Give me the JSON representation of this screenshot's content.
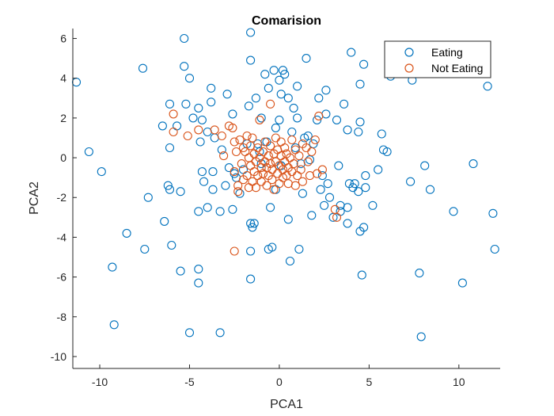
{
  "chart_data": {
    "type": "scatter",
    "title": "Comarision",
    "xlabel": "PCA1",
    "ylabel": "PCA2",
    "xlim": [
      -11.5,
      12.3
    ],
    "ylim": [
      -10.6,
      6.5
    ],
    "xticks": [
      -10,
      -5,
      0,
      5,
      10
    ],
    "yticks": [
      -10,
      -8,
      -6,
      -4,
      -2,
      0,
      2,
      4,
      6
    ],
    "grid": false,
    "legend_position": "top-right",
    "series": [
      {
        "name": "Eating",
        "color": "#0072BD",
        "marker": "circle-open",
        "points": [
          [
            -11.3,
            3.8
          ],
          [
            -10.6,
            0.3
          ],
          [
            -9.9,
            -0.7
          ],
          [
            -9.3,
            -5.5
          ],
          [
            -9.2,
            -8.4
          ],
          [
            -8.5,
            -3.8
          ],
          [
            -7.6,
            4.5
          ],
          [
            -7.3,
            -2.0
          ],
          [
            -7.5,
            -4.6
          ],
          [
            -6.5,
            1.6
          ],
          [
            -6.4,
            -3.2
          ],
          [
            -6.2,
            -1.4
          ],
          [
            -6.1,
            -1.6
          ],
          [
            -6.1,
            2.7
          ],
          [
            -6.1,
            0.5
          ],
          [
            -6.0,
            -4.4
          ],
          [
            -5.7,
            1.6
          ],
          [
            -5.5,
            -1.7
          ],
          [
            -5.5,
            -5.7
          ],
          [
            -5.3,
            6.0
          ],
          [
            -5.3,
            4.6
          ],
          [
            -5.2,
            2.7
          ],
          [
            -5.0,
            4.0
          ],
          [
            -5.0,
            -8.8
          ],
          [
            -4.8,
            2.0
          ],
          [
            -4.5,
            -5.6
          ],
          [
            -4.5,
            -6.3
          ],
          [
            -4.5,
            -2.7
          ],
          [
            -4.5,
            2.5
          ],
          [
            -4.4,
            0.8
          ],
          [
            -4.3,
            1.9
          ],
          [
            -4.3,
            -0.7
          ],
          [
            -4.2,
            -1.2
          ],
          [
            -4.0,
            1.3
          ],
          [
            -4.0,
            -2.5
          ],
          [
            -3.8,
            2.8
          ],
          [
            -3.8,
            3.5
          ],
          [
            -3.7,
            -1.6
          ],
          [
            -3.7,
            -0.7
          ],
          [
            -3.6,
            1.0
          ],
          [
            -3.3,
            -2.7
          ],
          [
            -3.3,
            -8.8
          ],
          [
            -3.2,
            0.4
          ],
          [
            -3.0,
            -1.4
          ],
          [
            -2.9,
            3.2
          ],
          [
            -2.8,
            -0.5
          ],
          [
            -2.6,
            -2.6
          ],
          [
            -2.6,
            2.2
          ],
          [
            -2.5,
            -0.8
          ],
          [
            -2.4,
            -1.0
          ],
          [
            -2.2,
            -1.8
          ],
          [
            -2.0,
            -0.6
          ],
          [
            -1.8,
            0.7
          ],
          [
            -1.7,
            2.6
          ],
          [
            -1.6,
            6.3
          ],
          [
            -1.6,
            4.9
          ],
          [
            -1.6,
            -3.3
          ],
          [
            -1.6,
            -4.7
          ],
          [
            -1.6,
            -6.1
          ],
          [
            -1.5,
            -3.5
          ],
          [
            -1.4,
            -3.3
          ],
          [
            -1.3,
            3.0
          ],
          [
            -1.2,
            0.7
          ],
          [
            -1.1,
            0.3
          ],
          [
            -1.0,
            -0.3
          ],
          [
            -1.0,
            2.0
          ],
          [
            -0.8,
            4.2
          ],
          [
            -0.7,
            0.8
          ],
          [
            -0.6,
            3.5
          ],
          [
            -0.6,
            -4.6
          ],
          [
            -0.5,
            -2.5
          ],
          [
            -0.4,
            -4.5
          ],
          [
            -0.3,
            4.4
          ],
          [
            -0.2,
            1.5
          ],
          [
            -0.2,
            -1.6
          ],
          [
            0.0,
            3.9
          ],
          [
            0.0,
            1.9
          ],
          [
            0.1,
            -0.4
          ],
          [
            0.1,
            3.2
          ],
          [
            0.2,
            4.4
          ],
          [
            0.3,
            4.2
          ],
          [
            0.5,
            3.0
          ],
          [
            0.5,
            -3.1
          ],
          [
            0.6,
            -5.2
          ],
          [
            0.7,
            1.3
          ],
          [
            0.8,
            2.5
          ],
          [
            0.9,
            0.5
          ],
          [
            1.0,
            2.0
          ],
          [
            1.0,
            3.6
          ],
          [
            1.1,
            -4.6
          ],
          [
            1.2,
            -0.3
          ],
          [
            1.3,
            -1.8
          ],
          [
            1.4,
            1.0
          ],
          [
            1.5,
            5.0
          ],
          [
            1.6,
            1.1
          ],
          [
            1.7,
            -0.1
          ],
          [
            1.8,
            -2.9
          ],
          [
            1.9,
            0.7
          ],
          [
            2.1,
            1.9
          ],
          [
            2.2,
            3.0
          ],
          [
            2.3,
            -1.6
          ],
          [
            2.4,
            -0.9
          ],
          [
            2.5,
            -2.4
          ],
          [
            2.6,
            3.4
          ],
          [
            2.6,
            2.2
          ],
          [
            2.7,
            -1.3
          ],
          [
            2.8,
            -2.0
          ],
          [
            3.0,
            -3.0
          ],
          [
            3.2,
            1.9
          ],
          [
            3.3,
            -0.4
          ],
          [
            3.4,
            -2.4
          ],
          [
            3.4,
            -2.7
          ],
          [
            3.6,
            2.7
          ],
          [
            3.8,
            1.4
          ],
          [
            3.8,
            -2.5
          ],
          [
            3.8,
            -3.3
          ],
          [
            3.9,
            -1.3
          ],
          [
            4.0,
            5.3
          ],
          [
            4.1,
            -1.5
          ],
          [
            4.2,
            -1.3
          ],
          [
            4.4,
            -1.7
          ],
          [
            4.4,
            1.3
          ],
          [
            4.5,
            1.8
          ],
          [
            4.5,
            3.7
          ],
          [
            4.5,
            -3.7
          ],
          [
            4.6,
            -5.9
          ],
          [
            4.7,
            -3.5
          ],
          [
            4.7,
            4.7
          ],
          [
            4.8,
            -1.5
          ],
          [
            4.8,
            -0.9
          ],
          [
            5.2,
            -2.4
          ],
          [
            5.5,
            -0.6
          ],
          [
            5.7,
            1.2
          ],
          [
            5.8,
            0.4
          ],
          [
            6.0,
            0.3
          ],
          [
            6.2,
            4.1
          ],
          [
            7.3,
            -1.2
          ],
          [
            7.4,
            3.9
          ],
          [
            7.5,
            4.5
          ],
          [
            7.8,
            -5.8
          ],
          [
            7.9,
            -9.0
          ],
          [
            8.1,
            -0.4
          ],
          [
            8.4,
            -1.6
          ],
          [
            9.7,
            -2.7
          ],
          [
            10.2,
            -6.3
          ],
          [
            10.8,
            -0.3
          ],
          [
            11.6,
            3.6
          ],
          [
            11.9,
            -2.8
          ],
          [
            12.0,
            -4.6
          ]
        ]
      },
      {
        "name": "Not Eating",
        "color": "#D95319",
        "marker": "circle-open",
        "points": [
          [
            -5.9,
            2.2
          ],
          [
            -5.9,
            1.3
          ],
          [
            -5.1,
            1.1
          ],
          [
            -4.5,
            1.4
          ],
          [
            -3.6,
            1.4
          ],
          [
            -3.2,
            1.1
          ],
          [
            -3.1,
            0.1
          ],
          [
            -2.8,
            1.6
          ],
          [
            -2.6,
            1.5
          ],
          [
            -2.5,
            0.8
          ],
          [
            -2.5,
            -0.7
          ],
          [
            -2.5,
            -4.7
          ],
          [
            -2.4,
            0.3
          ],
          [
            -2.3,
            -1.7
          ],
          [
            -2.3,
            -1.4
          ],
          [
            -2.2,
            0.9
          ],
          [
            -2.1,
            -0.3
          ],
          [
            -2.0,
            0.5
          ],
          [
            -2.0,
            -1.1
          ],
          [
            -1.9,
            0.3
          ],
          [
            -1.8,
            1.1
          ],
          [
            -1.8,
            -0.9
          ],
          [
            -1.7,
            0.0
          ],
          [
            -1.7,
            -1.5
          ],
          [
            -1.6,
            0.6
          ],
          [
            -1.6,
            -0.4
          ],
          [
            -1.5,
            1.0
          ],
          [
            -1.5,
            -1.2
          ],
          [
            -1.4,
            0.2
          ],
          [
            -1.4,
            -0.7
          ],
          [
            -1.3,
            -0.2
          ],
          [
            -1.3,
            -1.5
          ],
          [
            -1.2,
            0.5
          ],
          [
            -1.2,
            -0.9
          ],
          [
            -1.1,
            0.0
          ],
          [
            -1.1,
            1.9
          ],
          [
            -1.0,
            -0.5
          ],
          [
            -1.0,
            -1.2
          ],
          [
            -0.9,
            0.3
          ],
          [
            -0.9,
            -0.8
          ],
          [
            -0.8,
            -0.2
          ],
          [
            -0.8,
            0.8
          ],
          [
            -0.7,
            -1.4
          ],
          [
            -0.7,
            -0.5
          ],
          [
            -0.6,
            0.1
          ],
          [
            -0.6,
            -0.9
          ],
          [
            -0.5,
            2.7
          ],
          [
            -0.5,
            -0.3
          ],
          [
            -0.5,
            0.6
          ],
          [
            -0.4,
            -1.1
          ],
          [
            -0.4,
            -0.6
          ],
          [
            -0.3,
            0.2
          ],
          [
            -0.3,
            -1.6
          ],
          [
            -0.2,
            -0.2
          ],
          [
            -0.2,
            1.0
          ],
          [
            -0.1,
            -0.8
          ],
          [
            -0.1,
            0.4
          ],
          [
            0.0,
            -0.4
          ],
          [
            0.0,
            -1.3
          ],
          [
            0.1,
            0.1
          ],
          [
            0.1,
            0.8
          ],
          [
            0.2,
            -0.6
          ],
          [
            0.2,
            -1.0
          ],
          [
            0.3,
            0.5
          ],
          [
            0.3,
            -0.2
          ],
          [
            0.4,
            0.2
          ],
          [
            0.4,
            -0.9
          ],
          [
            0.5,
            -0.5
          ],
          [
            0.5,
            -1.3
          ],
          [
            0.6,
            0.0
          ],
          [
            0.7,
            -0.7
          ],
          [
            0.7,
            0.9
          ],
          [
            0.8,
            -0.3
          ],
          [
            0.9,
            0.4
          ],
          [
            0.9,
            -1.4
          ],
          [
            1.0,
            -0.9
          ],
          [
            1.1,
            0.1
          ],
          [
            1.2,
            -0.6
          ],
          [
            1.3,
            0.7
          ],
          [
            1.3,
            -1.2
          ],
          [
            1.5,
            0.5
          ],
          [
            1.6,
            -0.2
          ],
          [
            1.7,
            -0.9
          ],
          [
            1.8,
            0.3
          ],
          [
            2.0,
            0.9
          ],
          [
            2.1,
            -0.8
          ],
          [
            2.2,
            2.1
          ],
          [
            2.4,
            -0.6
          ],
          [
            3.1,
            -2.6
          ],
          [
            3.2,
            -3.0
          ]
        ]
      }
    ]
  }
}
